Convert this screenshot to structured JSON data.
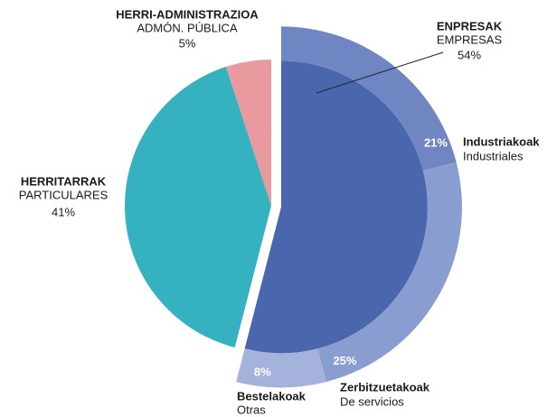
{
  "chart_data": {
    "type": "pie",
    "categories": [
      "ENPRESAK",
      "HERRITARRAK",
      "HERRI-ADMINISTRAZIOA"
    ],
    "sublabels": [
      "EMPRESAS",
      "PARTICULARES",
      "ADMÓN. PÚBLICA"
    ],
    "values": [
      54,
      41,
      5
    ],
    "value_labels": [
      "54%",
      "41%",
      "5%"
    ],
    "colors": [
      "#4a67ad",
      "#35b1c0",
      "#e89a9e"
    ],
    "breakdown": {
      "categories": [
        "Industriakoak",
        "Zerbitzuetakoak",
        "Bestelakoak"
      ],
      "sublabels": [
        "Industriales",
        "De servicios",
        "Otras"
      ],
      "values": [
        21,
        25,
        8
      ],
      "value_labels": [
        "21%",
        "25%",
        "8%"
      ],
      "colors": [
        "#6f86c2",
        "#8a9dd0",
        "#a5b2dc"
      ]
    }
  }
}
